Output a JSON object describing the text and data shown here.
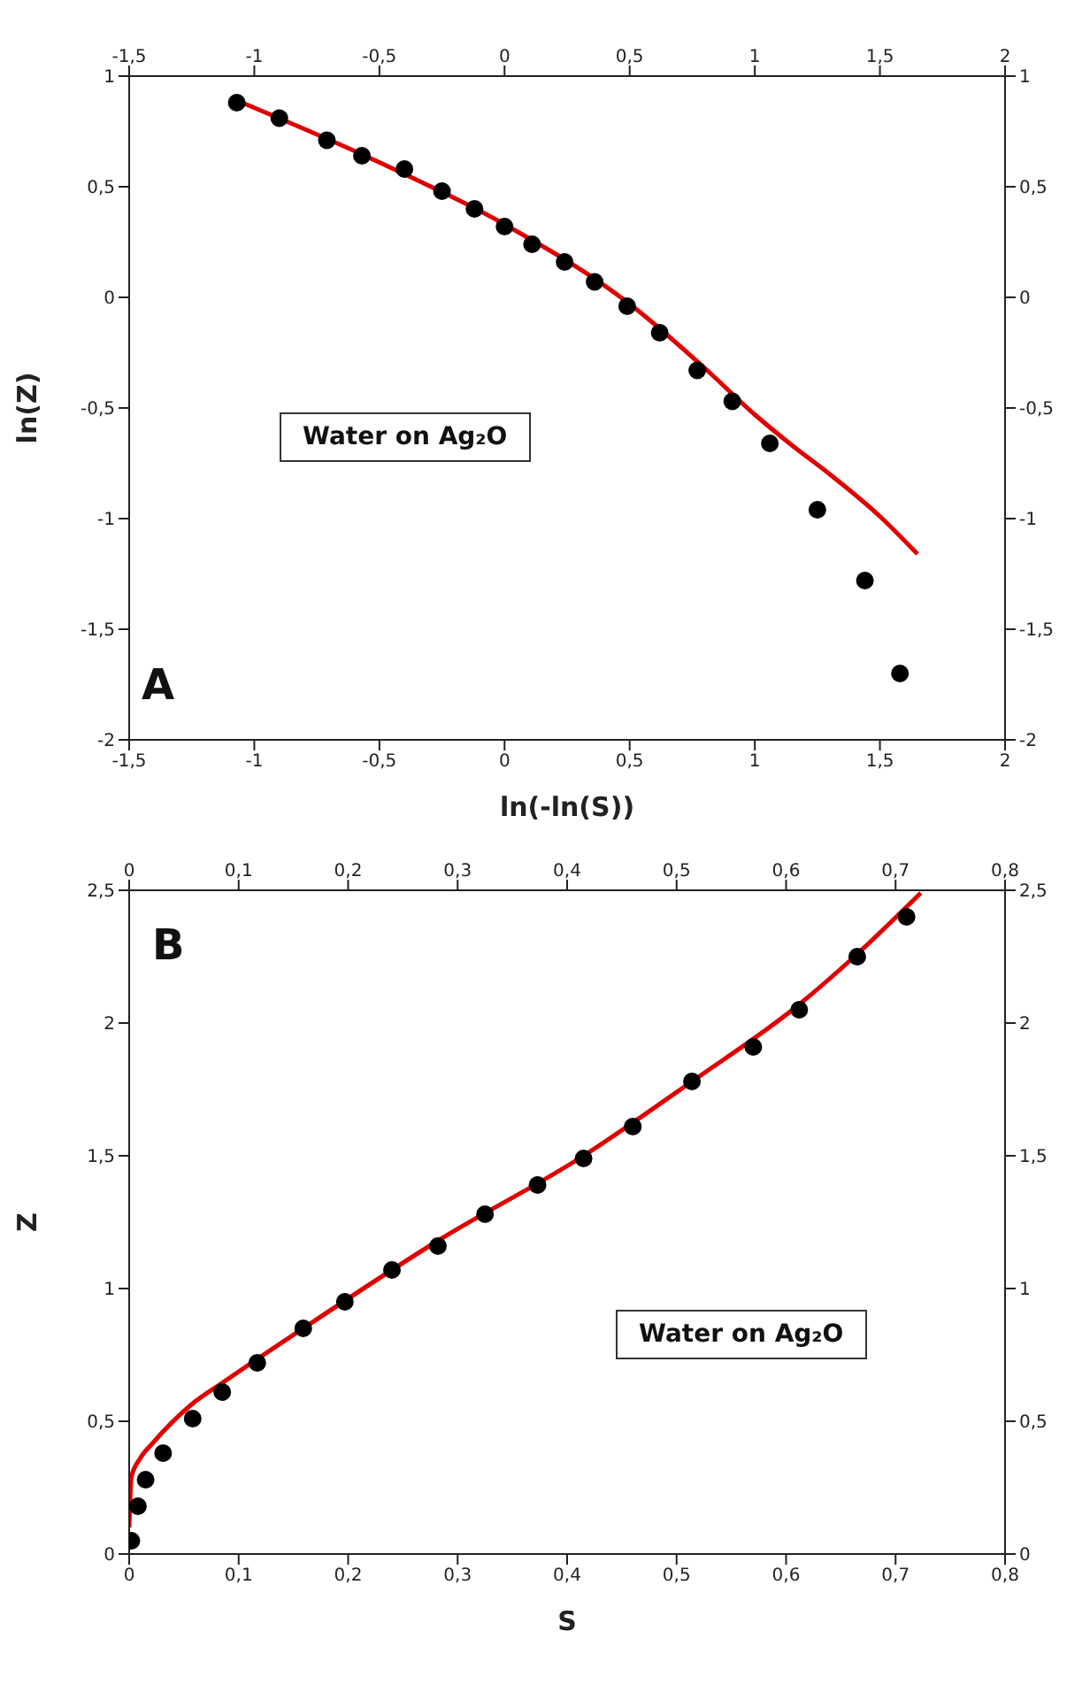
{
  "chart_data": [
    {
      "type": "scatter",
      "xlabel": "ln(-ln(S))",
      "ylabel": "ln(Z)",
      "annotations": [
        "Water on Ag₂O",
        "A"
      ],
      "xlim": [
        -1.5,
        2
      ],
      "xticks": [
        {
          "value": -1.5,
          "label": "-1,5"
        },
        -1,
        {
          "value": -0.5,
          "label": "-0,5"
        },
        0,
        {
          "value": 0.5,
          "label": "0,5"
        },
        1,
        {
          "value": 1.5,
          "label": "1,5"
        },
        2
      ],
      "x2lim": [
        -1.5,
        2
      ],
      "x2ticks": [
        {
          "value": -1.5,
          "label": "-1,5"
        },
        -1,
        {
          "value": -0.5,
          "label": "-0,5"
        },
        0,
        {
          "value": 0.5,
          "label": "0,5"
        },
        1,
        {
          "value": 1.5,
          "label": "1,5"
        },
        2
      ],
      "ylim": [
        -2,
        1
      ],
      "yticks": [
        -2,
        {
          "value": -1.5,
          "label": "-1,5"
        },
        -1,
        {
          "value": -0.5,
          "label": "-0,5"
        },
        0,
        {
          "value": 0.5,
          "label": "0,5"
        },
        1
      ],
      "y2lim": [
        -2,
        1
      ],
      "y2ticks": [
        -2,
        {
          "value": -1.5,
          "label": "-1,5"
        },
        -1,
        {
          "value": -0.5,
          "label": "-0,5"
        },
        0,
        {
          "value": 0.5,
          "label": "0,5"
        },
        1
      ],
      "series": [
        {
          "type": "scatter",
          "marker": "circle",
          "color": "#000000",
          "x": [
            -1.07,
            -0.9,
            -0.71,
            -0.57,
            -0.4,
            -0.25,
            -0.12,
            0.0,
            0.11,
            0.24,
            0.36,
            0.49,
            0.62,
            0.77,
            0.91,
            1.06,
            1.25,
            1.44,
            1.58
          ],
          "values": [
            0.88,
            0.81,
            0.71,
            0.64,
            0.58,
            0.48,
            0.4,
            0.32,
            0.24,
            0.16,
            0.07,
            -0.04,
            -0.16,
            -0.33,
            -0.47,
            -0.66,
            -0.96,
            -1.28,
            -1.7
          ]
        },
        {
          "type": "line",
          "marker": "none",
          "color": "#e00000",
          "x": [
            -1.07,
            -0.5,
            0,
            0.5,
            0.8,
            1,
            1.15,
            1.3,
            1.5,
            1.65
          ],
          "values": [
            0.89,
            0.61,
            0.33,
            -0.03,
            -0.32,
            -0.53,
            -0.67,
            -0.8,
            -0.99,
            -1.16
          ]
        }
      ]
    },
    {
      "type": "scatter",
      "xlabel": "S",
      "ylabel": "Z",
      "annotations": [
        "Water on Ag₂O",
        "B"
      ],
      "xlim": [
        0,
        0.8
      ],
      "xticks": [
        0,
        {
          "value": 0.1,
          "label": "0,1"
        },
        {
          "value": 0.2,
          "label": "0,2"
        },
        {
          "value": 0.3,
          "label": "0,3"
        },
        {
          "value": 0.4,
          "label": "0,4"
        },
        {
          "value": 0.5,
          "label": "0,5"
        },
        {
          "value": 0.6,
          "label": "0,6"
        },
        {
          "value": 0.7,
          "label": "0,7"
        },
        {
          "value": 0.8,
          "label": "0,8"
        }
      ],
      "x2lim": [
        0,
        0.8
      ],
      "x2ticks": [
        0,
        {
          "value": 0.1,
          "label": "0,1"
        },
        {
          "value": 0.2,
          "label": "0,2"
        },
        {
          "value": 0.3,
          "label": "0,3"
        },
        {
          "value": 0.4,
          "label": "0,4"
        },
        {
          "value": 0.5,
          "label": "0,5"
        },
        {
          "value": 0.6,
          "label": "0,6"
        },
        {
          "value": 0.7,
          "label": "0,7"
        },
        {
          "value": 0.8,
          "label": "0,8"
        }
      ],
      "ylim": [
        0,
        2.5
      ],
      "yticks": [
        0,
        {
          "value": 0.5,
          "label": "0,5"
        },
        1,
        {
          "value": 1.5,
          "label": "1,5"
        },
        2,
        {
          "value": 2.5,
          "label": "2,5"
        }
      ],
      "y2lim": [
        0,
        2.5
      ],
      "y2ticks": [
        0,
        {
          "value": 0.5,
          "label": "0,5"
        },
        1,
        {
          "value": 1.5,
          "label": "1,5"
        },
        2,
        {
          "value": 2.5,
          "label": "2,5"
        }
      ],
      "series": [
        {
          "type": "scatter",
          "marker": "circle",
          "color": "#000000",
          "x": [
            0.002,
            0.008,
            0.015,
            0.031,
            0.058,
            0.085,
            0.117,
            0.159,
            0.197,
            0.24,
            0.282,
            0.325,
            0.373,
            0.415,
            0.46,
            0.514,
            0.57,
            0.612,
            0.665,
            0.71
          ],
          "values": [
            0.05,
            0.18,
            0.28,
            0.38,
            0.51,
            0.61,
            0.72,
            0.85,
            0.95,
            1.07,
            1.16,
            1.28,
            1.39,
            1.49,
            1.61,
            1.78,
            1.91,
            2.05,
            2.25,
            2.4
          ]
        },
        {
          "type": "line",
          "marker": "none",
          "color": "#e00000",
          "x": [
            0,
            0.002,
            0.01,
            0.022,
            0.056,
            0.087,
            0.159,
            0.282,
            0.415,
            0.514,
            0.612,
            0.665,
            0.723
          ],
          "values": [
            0.1,
            0.29,
            0.36,
            0.42,
            0.56,
            0.65,
            0.85,
            1.18,
            1.5,
            1.78,
            2.07,
            2.26,
            2.49
          ]
        }
      ]
    }
  ]
}
